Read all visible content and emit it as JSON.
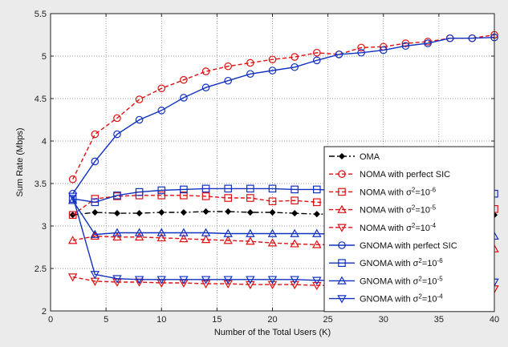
{
  "chart_data": {
    "type": "line",
    "xlabel": "Number of the Total Users (K)",
    "ylabel": "Sum Rate (Mbps)",
    "xlim": [
      0,
      40
    ],
    "ylim": [
      2,
      5.5
    ],
    "xticks": [
      "0",
      "5",
      "10",
      "15",
      "20",
      "25",
      "30",
      "35",
      "40"
    ],
    "yticks": [
      "2",
      "2.5",
      "3",
      "3.5",
      "4",
      "4.5",
      "5",
      "5.5"
    ],
    "grid": true,
    "legend_position": "lower-right",
    "x": [
      2,
      4,
      6,
      8,
      10,
      12,
      14,
      16,
      18,
      20,
      22,
      24,
      26,
      28,
      30,
      32,
      34,
      36,
      38,
      40
    ],
    "series": [
      {
        "name": "OMA",
        "color": "#000000",
        "dash": "dashdot",
        "marker": "diamond",
        "values": [
          3.13,
          3.16,
          3.15,
          3.15,
          3.16,
          3.16,
          3.17,
          3.17,
          3.16,
          3.16,
          3.15,
          3.14,
          3.14,
          3.15,
          3.14,
          3.14,
          3.13,
          3.14,
          3.13,
          3.13
        ]
      },
      {
        "name": "NOMA with perfect SIC",
        "color": "#e01010",
        "dash": "dashed",
        "marker": "circle",
        "values": [
          3.55,
          4.08,
          4.27,
          4.49,
          4.62,
          4.72,
          4.82,
          4.88,
          4.92,
          4.96,
          4.99,
          5.04,
          5.02,
          5.1,
          5.11,
          5.15,
          5.17,
          5.21,
          5.21,
          5.25
        ]
      },
      {
        "name": "NOMA with σ2=10-6",
        "color": "#e01010",
        "dash": "dashed",
        "marker": "square",
        "values": [
          3.13,
          3.32,
          3.35,
          3.36,
          3.36,
          3.36,
          3.35,
          3.33,
          3.33,
          3.29,
          3.3,
          3.28,
          3.27,
          3.25,
          3.24,
          3.23,
          3.22,
          3.22,
          3.21,
          3.2
        ]
      },
      {
        "name": "NOMA with σ2=10-5",
        "color": "#e01010",
        "dash": "dashed",
        "marker": "triangle-up",
        "values": [
          2.83,
          2.88,
          2.87,
          2.87,
          2.86,
          2.85,
          2.84,
          2.83,
          2.82,
          2.8,
          2.79,
          2.78,
          2.78,
          2.77,
          2.76,
          2.76,
          2.75,
          2.75,
          2.74,
          2.73
        ]
      },
      {
        "name": "NOMA with σ2=10-4",
        "color": "#e01010",
        "dash": "dashed",
        "marker": "triangle-down",
        "values": [
          2.4,
          2.35,
          2.34,
          2.34,
          2.33,
          2.33,
          2.32,
          2.32,
          2.31,
          2.31,
          2.31,
          2.3,
          2.3,
          2.29,
          2.29,
          2.28,
          2.28,
          2.27,
          2.27,
          2.26
        ]
      },
      {
        "name": "GNOMA with perfect SIC",
        "color": "#1030c0",
        "dash": "solid",
        "marker": "circle",
        "values": [
          3.38,
          3.76,
          4.08,
          4.25,
          4.36,
          4.51,
          4.63,
          4.71,
          4.79,
          4.83,
          4.87,
          4.95,
          5.02,
          5.04,
          5.07,
          5.12,
          5.15,
          5.21,
          5.21,
          5.22
        ]
      },
      {
        "name": "GNOMA with σ2=10-6",
        "color": "#1030c0",
        "dash": "solid",
        "marker": "square",
        "values": [
          3.32,
          3.28,
          3.36,
          3.4,
          3.42,
          3.43,
          3.44,
          3.44,
          3.44,
          3.44,
          3.43,
          3.43,
          3.42,
          3.42,
          3.41,
          3.41,
          3.4,
          3.4,
          3.39,
          3.38
        ]
      },
      {
        "name": "GNOMA with σ2=10-5",
        "color": "#1030c0",
        "dash": "solid",
        "marker": "triangle-up",
        "values": [
          3.3,
          2.9,
          2.92,
          2.92,
          2.92,
          2.92,
          2.92,
          2.91,
          2.91,
          2.91,
          2.91,
          2.91,
          2.9,
          2.9,
          2.9,
          2.9,
          2.89,
          2.89,
          2.89,
          2.88
        ]
      },
      {
        "name": "GNOMA with σ2=10-4",
        "color": "#1030c0",
        "dash": "solid",
        "marker": "triangle-down",
        "values": [
          3.35,
          2.43,
          2.38,
          2.37,
          2.37,
          2.37,
          2.37,
          2.37,
          2.37,
          2.37,
          2.37,
          2.36,
          2.36,
          2.36,
          2.36,
          2.35,
          2.35,
          2.35,
          2.35,
          2.34
        ]
      }
    ],
    "legend": [
      {
        "prefix": "OMA",
        "sup1": "",
        "mid": "",
        "sup2": ""
      },
      {
        "prefix": "NOMA with perfect SIC",
        "sup1": "",
        "mid": "",
        "sup2": ""
      },
      {
        "prefix": "NOMA with σ",
        "sup1": "2",
        "mid": "=10",
        "sup2": "-6"
      },
      {
        "prefix": "NOMA with σ",
        "sup1": "2",
        "mid": "=10",
        "sup2": "-5"
      },
      {
        "prefix": "NOMA with σ",
        "sup1": "2",
        "mid": "=10",
        "sup2": "-4"
      },
      {
        "prefix": "GNOMA with perfect SIC",
        "sup1": "",
        "mid": "",
        "sup2": ""
      },
      {
        "prefix": "GNOMA with σ",
        "sup1": "2",
        "mid": "=10",
        "sup2": "-6"
      },
      {
        "prefix": "GNOMA with σ",
        "sup1": "2",
        "mid": "=10",
        "sup2": "-5"
      },
      {
        "prefix": "GNOMA with σ",
        "sup1": "2",
        "mid": "=10",
        "sup2": "-4"
      }
    ]
  }
}
